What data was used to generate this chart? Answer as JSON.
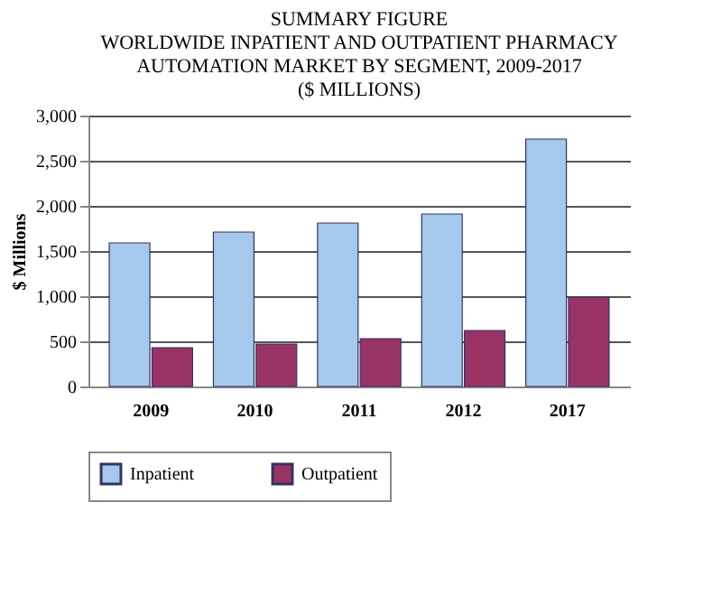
{
  "chart_data": {
    "type": "bar",
    "title": [
      "SUMMARY FIGURE",
      "WORLDWIDE INPATIENT AND OUTPATIENT PHARMACY",
      "AUTOMATION MARKET BY SEGMENT,     2009-2017",
      "($ MILLIONS)"
    ],
    "ylabel": "$ Millions",
    "categories": [
      "2009",
      "2010",
      "2011",
      "2012",
      "2017"
    ],
    "series": [
      {
        "name": "Inpatient",
        "color": "#a6c8ec",
        "values": [
          1590,
          1710,
          1810,
          1910,
          2740
        ]
      },
      {
        "name": "Outpatient",
        "color": "#993366",
        "values": [
          430,
          470,
          530,
          620,
          990
        ]
      }
    ],
    "ylim": [
      0,
      3000
    ],
    "yticks": [
      {
        "value": 0,
        "label": "0"
      },
      {
        "value": 500,
        "label": "500"
      },
      {
        "value": 1000,
        "label": "1,000"
      },
      {
        "value": 1500,
        "label": "1,500"
      },
      {
        "value": 2000,
        "label": "2,000"
      },
      {
        "value": 2500,
        "label": "2,500"
      },
      {
        "value": 3000,
        "label": "3,000"
      }
    ],
    "grid": "y",
    "legend": "bottom"
  }
}
